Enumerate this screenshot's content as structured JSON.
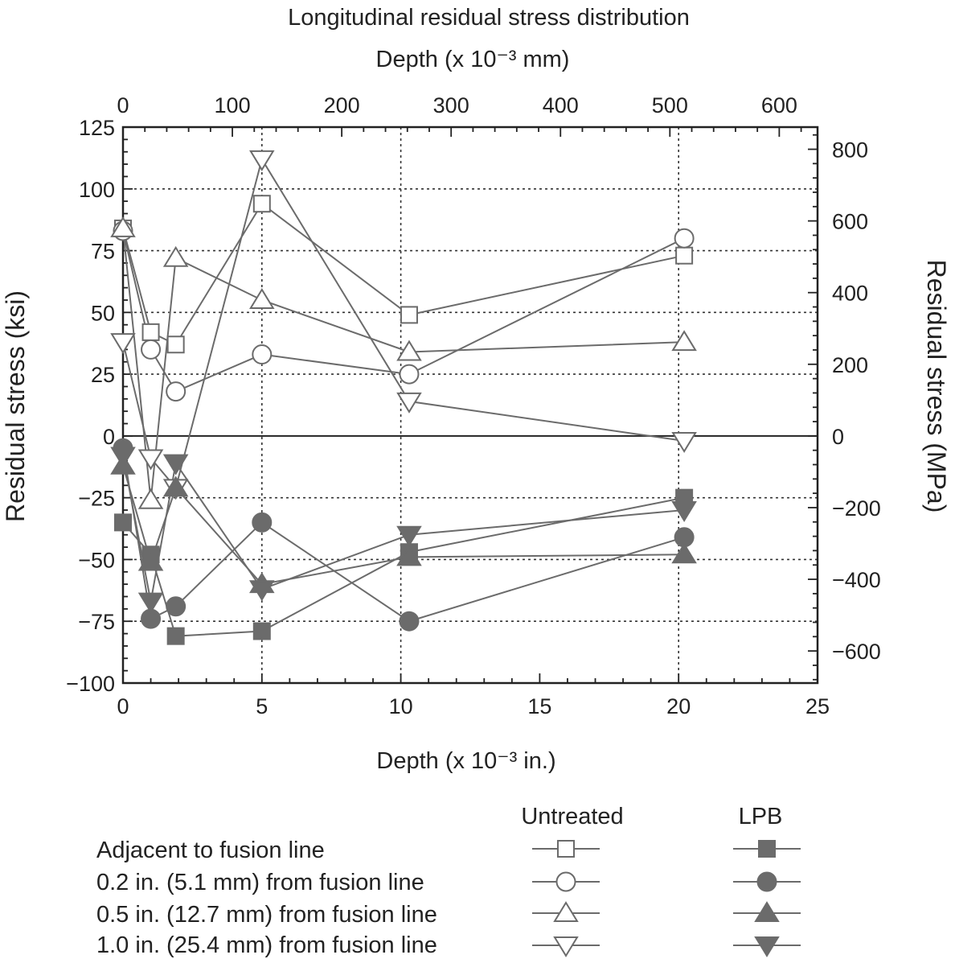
{
  "chart_data": {
    "type": "line",
    "title": "Longitudinal residual stress distribution",
    "top_axis_label": "Depth (x 10⁻³ mm)",
    "xlabel": "Depth (x 10⁻³ in.)",
    "ylabel": "Residual stress (ksi)",
    "ylabel_right": "Residual stress (MPa)",
    "xlim": [
      0,
      25
    ],
    "ylim": [
      -100,
      125
    ],
    "top_xlim_mm": [
      0,
      635
    ],
    "right_ylim_mpa": [
      -689.5,
      861.8
    ],
    "x_ticks": [
      "0",
      "5",
      "10",
      "15",
      "20",
      "25"
    ],
    "y_ticks": [
      "125",
      "100",
      "75",
      "50",
      "25",
      "0",
      "−25",
      "−50",
      "−75",
      "−100"
    ],
    "top_ticks": [
      "0",
      "100",
      "200",
      "300",
      "400",
      "500",
      "600"
    ],
    "right_ticks": [
      "800",
      "600",
      "400",
      "200",
      "0",
      "−200",
      "−400",
      "−600"
    ],
    "grid": "dotted at x = 5, 10, 20 and y = 100, 75, 50, 25, −25, −50, −75",
    "legend_placement": "bottom",
    "legend_columns": [
      "Untreated",
      "LPB"
    ],
    "legend_rows": [
      "Adjacent to fusion line",
      "0.2 in. (5.1 mm) from fusion line",
      "0.5 in. (12.7 mm) from fusion line",
      "1.0 in. (25.4 mm) from fusion line"
    ],
    "colors": {
      "series": "#6b6b6b",
      "axis": "#222222",
      "grid": "#333333"
    },
    "series": [
      {
        "group": "Untreated",
        "row": 0,
        "marker": "square",
        "filled": false,
        "x": [
          0,
          1.0,
          1.9,
          5.0,
          10.3,
          20.2
        ],
        "y": [
          84,
          42,
          37,
          94,
          49,
          73
        ]
      },
      {
        "group": "Untreated",
        "row": 1,
        "marker": "circle",
        "filled": false,
        "x": [
          0,
          1.0,
          1.9,
          5.0,
          10.3,
          20.2
        ],
        "y": [
          83,
          35,
          18,
          33,
          25,
          80
        ]
      },
      {
        "group": "Untreated",
        "row": 2,
        "marker": "triangle-up",
        "filled": false,
        "x": [
          0,
          1.0,
          1.9,
          5.0,
          10.3,
          20.2
        ],
        "y": [
          84,
          -26,
          72,
          55,
          34,
          38
        ]
      },
      {
        "group": "Untreated",
        "row": 3,
        "marker": "triangle-down",
        "filled": false,
        "x": [
          0,
          1.0,
          1.9,
          5.0,
          10.3,
          20.2
        ],
        "y": [
          38,
          -9,
          -21,
          112,
          14,
          -2
        ]
      },
      {
        "group": "LPB",
        "row": 0,
        "marker": "square",
        "filled": true,
        "x": [
          0,
          1.0,
          1.9,
          5.0,
          10.3,
          20.2
        ],
        "y": [
          -35,
          -48,
          -81,
          -79,
          -47,
          -25
        ]
      },
      {
        "group": "LPB",
        "row": 1,
        "marker": "circle",
        "filled": true,
        "x": [
          0,
          1.0,
          1.9,
          5.0,
          10.3,
          20.2
        ],
        "y": [
          -5,
          -74,
          -69,
          -35,
          -75,
          -41
        ]
      },
      {
        "group": "LPB",
        "row": 2,
        "marker": "triangle-up",
        "filled": true,
        "x": [
          0,
          1.0,
          1.9,
          5.0,
          10.3,
          20.2
        ],
        "y": [
          -12,
          -51,
          -21,
          -60,
          -49,
          -48
        ]
      },
      {
        "group": "LPB",
        "row": 3,
        "marker": "triangle-down",
        "filled": true,
        "x": [
          0,
          1.0,
          1.9,
          5.0,
          10.3,
          20.2
        ],
        "y": [
          -8,
          -67,
          -11,
          -62,
          -40,
          -30
        ]
      }
    ]
  }
}
